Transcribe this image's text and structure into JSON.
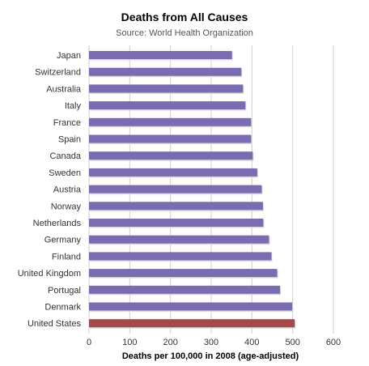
{
  "chart_data": {
    "type": "bar",
    "orientation": "horizontal",
    "title": "Deaths from All Causes",
    "subtitle": "Source: World Health Organization",
    "xlabel": "Deaths per 100,000 in 2008 (age-adjusted)",
    "ylabel": "",
    "xlim": [
      0,
      600
    ],
    "xticks": [
      0,
      100,
      200,
      300,
      400,
      500,
      600
    ],
    "grid": true,
    "categories": [
      "Japan",
      "Switzerland",
      "Australia",
      "Italy",
      "France",
      "Spain",
      "Canada",
      "Sweden",
      "Austria",
      "Norway",
      "Netherlands",
      "Germany",
      "Finland",
      "United Kingdom",
      "Portugal",
      "Denmark",
      "United States"
    ],
    "values": [
      351,
      374,
      378,
      384,
      398,
      398,
      402,
      413,
      424,
      427,
      428,
      442,
      448,
      462,
      469,
      499,
      505
    ],
    "colors": {
      "default_bar": "#7b6bb0",
      "highlight_bar": "#a44a4a",
      "gridline": "#cfcfcf"
    },
    "highlight": "United States"
  }
}
